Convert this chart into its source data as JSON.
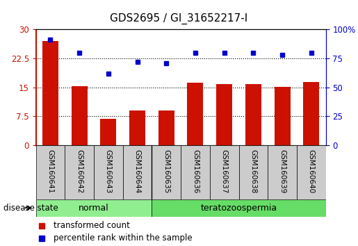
{
  "title": "GDS2695 / GI_31652217-I",
  "samples": [
    "GSM160641",
    "GSM160642",
    "GSM160643",
    "GSM160644",
    "GSM160635",
    "GSM160636",
    "GSM160637",
    "GSM160638",
    "GSM160639",
    "GSM160640"
  ],
  "red_bars": [
    27.0,
    15.3,
    6.8,
    9.0,
    9.0,
    16.2,
    15.8,
    15.9,
    15.2,
    16.3
  ],
  "blue_dots": [
    91,
    80,
    62,
    72,
    71,
    80,
    80,
    80,
    78,
    80
  ],
  "red_ylim": [
    0,
    30
  ],
  "blue_ylim": [
    0,
    100
  ],
  "red_yticks": [
    0,
    7.5,
    15,
    22.5,
    30
  ],
  "blue_yticks": [
    0,
    25,
    50,
    75,
    100
  ],
  "red_ytick_labels": [
    "0",
    "7.5",
    "15",
    "22.5",
    "30"
  ],
  "blue_ytick_labels": [
    "0",
    "25",
    "50",
    "75",
    "100%"
  ],
  "bar_color": "#CC1100",
  "dot_color": "#0000CC",
  "plot_bg": "#FFFFFF",
  "disease_state_label": "disease state",
  "normal_color": "#90EE90",
  "terato_color": "#66DD66",
  "legend_items": [
    {
      "label": "transformed count",
      "color": "#CC1100"
    },
    {
      "label": "percentile rank within the sample",
      "color": "#0000CC"
    }
  ],
  "grid_color": "black",
  "title_fontsize": 11,
  "tick_fontsize": 8.5,
  "label_fontsize": 8.5,
  "sample_box_color": "#CCCCCC",
  "divider_index": 3.5
}
